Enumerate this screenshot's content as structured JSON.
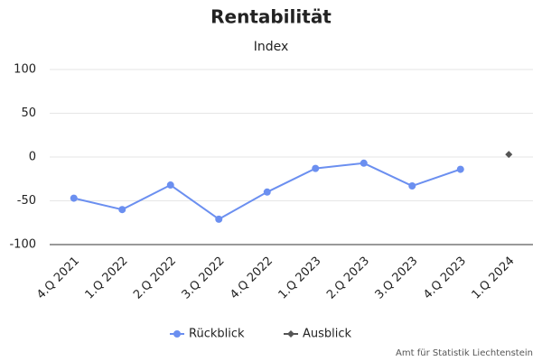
{
  "chart_data": {
    "type": "line",
    "title": "Rentabilität",
    "subtitle": "Index",
    "categories": [
      "4.Q 2021",
      "1.Q 2022",
      "2.Q 2022",
      "3.Q 2022",
      "4.Q 2022",
      "1.Q 2023",
      "2.Q 2023",
      "3.Q 2023",
      "4.Q 2023",
      "1.Q 2024"
    ],
    "series": [
      {
        "name": "Rückblick",
        "color": "#6b8ff0",
        "marker": "circle",
        "values": [
          -47,
          -60,
          -32,
          -71,
          -40,
          -13,
          -7,
          -33,
          -14,
          null
        ]
      },
      {
        "name": "Ausblick",
        "color": "#555555",
        "marker": "diamond",
        "values": [
          null,
          null,
          null,
          null,
          null,
          null,
          null,
          null,
          null,
          3
        ]
      }
    ],
    "ylim": [
      -100,
      100
    ],
    "yticks": [
      -100,
      -50,
      0,
      50,
      100
    ],
    "grid": true,
    "legend": "bottom",
    "credits": "Amt für Statistik Liechtenstein"
  }
}
